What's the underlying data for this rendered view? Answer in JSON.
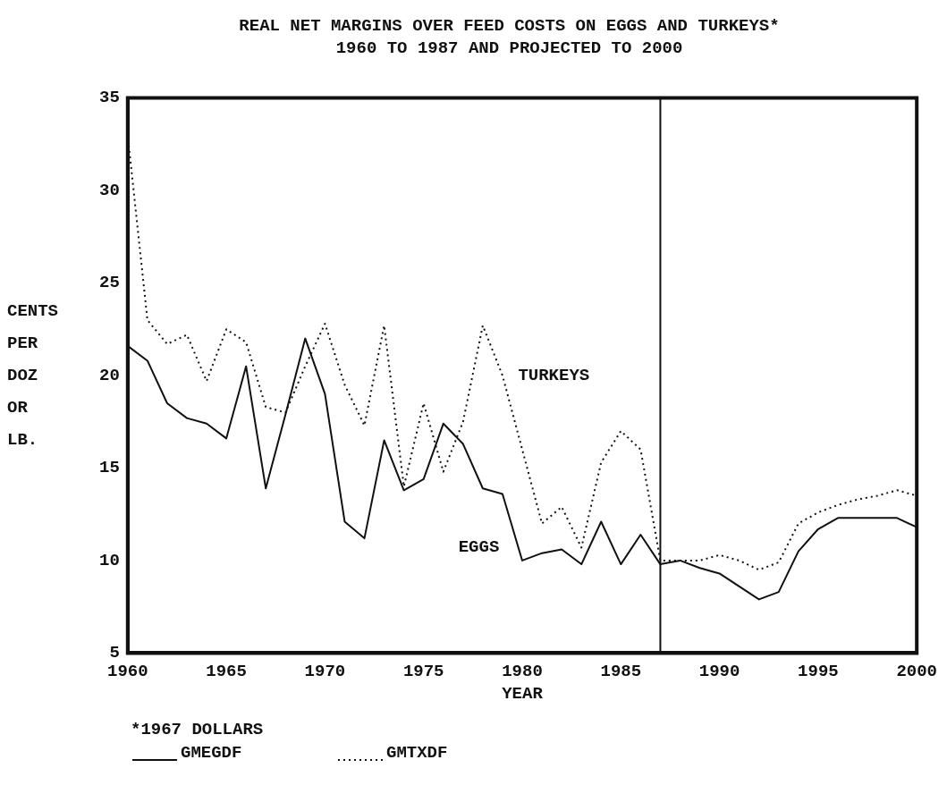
{
  "chart_data": {
    "type": "line",
    "title": "REAL NET MARGINS OVER FEED COSTS ON EGGS AND TURKEYS*",
    "subtitle": "1960 TO 1987 AND PROJECTED TO 2000",
    "xlabel": "YEAR",
    "ylabel": "CENTS PER DOZ OR LB.",
    "x": [
      1960,
      1961,
      1962,
      1963,
      1964,
      1965,
      1966,
      1967,
      1968,
      1969,
      1970,
      1971,
      1972,
      1973,
      1974,
      1975,
      1976,
      1977,
      1978,
      1979,
      1980,
      1981,
      1982,
      1983,
      1984,
      1985,
      1986,
      1987,
      1988,
      1989,
      1990,
      1991,
      1992,
      1993,
      1994,
      1995,
      1996,
      1997,
      1998,
      1999,
      2000
    ],
    "series": [
      {
        "name": "GMEGDF",
        "color": "#111111",
        "line_style": "solid",
        "values": [
          21.6,
          20.8,
          18.5,
          17.7,
          17.4,
          16.6,
          20.5,
          13.9,
          17.9,
          22,
          19,
          12.1,
          11.2,
          16.5,
          13.8,
          14.4,
          17.4,
          16.3,
          13.9,
          13.6,
          10,
          10.4,
          10.6,
          9.8,
          12.1,
          9.8,
          11.4,
          9.8,
          10,
          9.6,
          9.3,
          8.6,
          7.9,
          8.3,
          10.5,
          11.7,
          12.3,
          12.3,
          12.3,
          12.3,
          11.8
        ]
      },
      {
        "name": "GMTXDF",
        "color": "#111111",
        "line_style": "dotted",
        "values": [
          33,
          23,
          21.7,
          22.2,
          19.7,
          22.5,
          21.8,
          18.3,
          18,
          20.5,
          22.8,
          19.5,
          17.3,
          22.7,
          14,
          18.5,
          14.8,
          17.5,
          22.7,
          20,
          16,
          12,
          12.9,
          10.7,
          15.3,
          17,
          16,
          10,
          10,
          10,
          10.3,
          10,
          9.5,
          9.9,
          12,
          12.6,
          13,
          13.3,
          13.5,
          13.8,
          13.5
        ]
      }
    ],
    "xlim": [
      1960,
      2000
    ],
    "xticks": [
      1960,
      1965,
      1970,
      1975,
      1980,
      1985,
      1990,
      1995,
      2000
    ],
    "ylim": [
      5,
      35
    ],
    "yticks": [
      5,
      10,
      15,
      20,
      25,
      30,
      35
    ],
    "ref_lines": [
      {
        "axis": "x",
        "value": 1987,
        "color": "#111111",
        "line_style": "solid"
      }
    ],
    "annotations": [
      "TURKEYS",
      "EGGS",
      "*1967 DOLLARS"
    ],
    "grid": false,
    "legend": "bottom left",
    "marker": "none"
  }
}
